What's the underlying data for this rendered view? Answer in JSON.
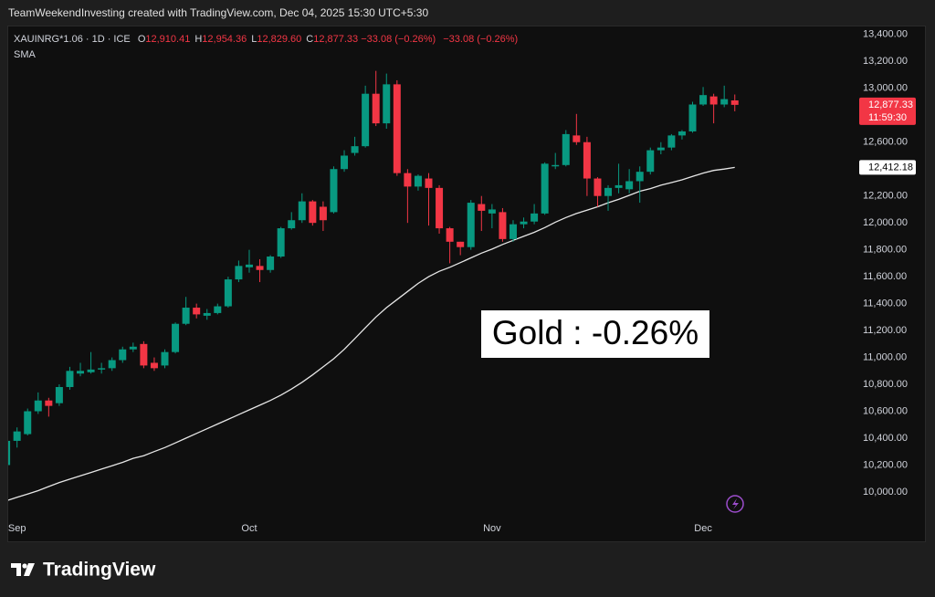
{
  "header": {
    "credit": "TeamWeekendInvesting created with TradingView.com, Dec 04, 2025 15:30 UTC+5:30",
    "symbol": "XAUINRG*1.06 · 1D · ICE",
    "ohlc": [
      {
        "key": "O",
        "value": "12,910.41"
      },
      {
        "key": "H",
        "value": "12,954.36"
      },
      {
        "key": "L",
        "value": "12,829.60"
      },
      {
        "key": "C",
        "value": "12,877.33"
      }
    ],
    "change": [
      "−33.08 (−0.26%)",
      "−33.08 (−0.26%)"
    ]
  },
  "footer": {
    "brand": "TradingView"
  },
  "chart_data": {
    "type": "candlestick",
    "annotation": "Gold : -0.26%",
    "categories": [
      null,
      "Sep",
      null,
      null,
      null,
      null,
      null,
      null,
      null,
      null,
      null,
      null,
      null,
      null,
      null,
      null,
      null,
      null,
      null,
      null,
      null,
      null,
      null,
      "Oct",
      null,
      null,
      null,
      null,
      null,
      null,
      null,
      null,
      null,
      null,
      null,
      null,
      null,
      null,
      null,
      null,
      null,
      null,
      null,
      null,
      null,
      null,
      "Nov",
      null,
      null,
      null,
      null,
      null,
      null,
      null,
      null,
      null,
      null,
      null,
      null,
      null,
      null,
      null,
      null,
      null,
      null,
      null,
      "Dec",
      null,
      null,
      null
    ],
    "open": [
      10200,
      10380,
      10430,
      10600,
      10680,
      10660,
      10780,
      10880,
      10890,
      10910,
      10920,
      10980,
      11060,
      11100,
      10960,
      10940,
      11040,
      11250,
      11370,
      11310,
      11330,
      11380,
      11580,
      11670,
      11680,
      11650,
      11750,
      11960,
      12020,
      12160,
      12120,
      12080,
      12400,
      12520,
      12570,
      12960,
      12740,
      13030,
      12370,
      12270,
      12330,
      12260,
      11960,
      11860,
      11820,
      12140,
      12070,
      12080,
      11880,
      11990,
      12010,
      12070,
      12420,
      12430,
      12650,
      12600,
      12330,
      12200,
      12260,
      12250,
      12310,
      12380,
      12540,
      12560,
      12650,
      12680,
      12880,
      12940,
      12880,
      12910.41
    ],
    "high": [
      10420,
      10480,
      10620,
      10740,
      10700,
      10800,
      10930,
      10960,
      11040,
      10960,
      11000,
      11080,
      11110,
      11120,
      11000,
      11060,
      11260,
      11450,
      11400,
      11360,
      11400,
      11600,
      11720,
      11800,
      11730,
      11760,
      11970,
      12080,
      12220,
      12170,
      12160,
      12420,
      12540,
      12640,
      13020,
      13130,
      13110,
      13060,
      12400,
      12360,
      12370,
      12280,
      11970,
      11860,
      12170,
      12200,
      12140,
      12110,
      12020,
      12040,
      12140,
      12450,
      12520,
      12690,
      12810,
      12640,
      12340,
      12280,
      12440,
      12400,
      12420,
      12560,
      12600,
      12660,
      12690,
      12900,
      13010,
      12960,
      13020,
      12954.36
    ],
    "low": [
      10170,
      10330,
      10420,
      10580,
      10560,
      10640,
      10760,
      10860,
      10880,
      10880,
      10900,
      10960,
      11040,
      10920,
      10900,
      10920,
      11030,
      11240,
      11290,
      11280,
      11320,
      11370,
      11560,
      11630,
      11560,
      11630,
      11740,
      11950,
      12000,
      11980,
      11940,
      12070,
      12380,
      12500,
      12560,
      12720,
      12700,
      12350,
      12000,
      12240,
      11980,
      11920,
      11700,
      11760,
      11800,
      11940,
      11960,
      11860,
      11860,
      11960,
      11990,
      12060,
      12400,
      12420,
      12580,
      12200,
      12120,
      12090,
      12220,
      12220,
      12150,
      12360,
      12510,
      12540,
      12620,
      12670,
      12870,
      12740,
      12860,
      12829.6
    ],
    "close": [
      10380,
      10450,
      10600,
      10680,
      10640,
      10780,
      10900,
      10900,
      10910,
      10920,
      10980,
      11060,
      11080,
      10940,
      10920,
      11040,
      11250,
      11370,
      11320,
      11330,
      11380,
      11580,
      11680,
      11690,
      11650,
      11750,
      11960,
      12020,
      12160,
      12000,
      12020,
      12400,
      12500,
      12570,
      12960,
      12740,
      13030,
      12370,
      12270,
      12350,
      12260,
      11960,
      11860,
      11820,
      12150,
      12090,
      12100,
      11880,
      11990,
      12010,
      12070,
      12440,
      12430,
      12660,
      12600,
      12330,
      12200,
      12260,
      12280,
      12310,
      12380,
      12540,
      12560,
      12650,
      12680,
      12880,
      12950,
      12880,
      12920,
      12877.33
    ],
    "up_color": "#089981",
    "down_color": "#f23645",
    "sma": {
      "name": "SMA",
      "color": "#e6e6e6",
      "values": [
        9935,
        9960,
        9985,
        10010,
        10040,
        10070,
        10095,
        10120,
        10145,
        10170,
        10195,
        10220,
        10250,
        10270,
        10300,
        10330,
        10365,
        10400,
        10435,
        10470,
        10505,
        10540,
        10575,
        10610,
        10645,
        10680,
        10720,
        10765,
        10815,
        10870,
        10930,
        10990,
        11060,
        11140,
        11220,
        11300,
        11370,
        11430,
        11490,
        11550,
        11600,
        11640,
        11670,
        11705,
        11740,
        11775,
        11805,
        11840,
        11870,
        11900,
        11930,
        11965,
        12005,
        12040,
        12070,
        12095,
        12120,
        12150,
        12175,
        12205,
        12235,
        12255,
        12280,
        12300,
        12320,
        12345,
        12370,
        12390,
        12400,
        12412.18
      ]
    },
    "last_price": {
      "value": 12877.33,
      "label": "12,877.33"
    },
    "countdown": "11:59:30",
    "sma_label": {
      "value": 12412.18,
      "label": "12,412.18"
    },
    "ylim": [
      9830,
      13460
    ],
    "yticks": [
      {
        "value": 10000,
        "label": "10,000.00"
      },
      {
        "value": 10200,
        "label": "10,200.00"
      },
      {
        "value": 10400,
        "label": "10,400.00"
      },
      {
        "value": 10600,
        "label": "10,600.00"
      },
      {
        "value": 10800,
        "label": "10,800.00"
      },
      {
        "value": 11000,
        "label": "11,000.00"
      },
      {
        "value": 11200,
        "label": "11,200.00"
      },
      {
        "value": 11400,
        "label": "11,400.00"
      },
      {
        "value": 11600,
        "label": "11,600.00"
      },
      {
        "value": 11800,
        "label": "11,800.00"
      },
      {
        "value": 12000,
        "label": "12,000.00"
      },
      {
        "value": 12200,
        "label": "12,200.00"
      },
      {
        "value": 12400,
        "label": "12,400.00"
      },
      {
        "value": 12600,
        "label": "12,600.00"
      },
      {
        "value": 12800,
        "label": "12,800.00"
      },
      {
        "value": 13000,
        "label": "13,000.00"
      },
      {
        "value": 13200,
        "label": "13,200.00"
      },
      {
        "value": 13400,
        "label": "13,400.00"
      }
    ]
  }
}
